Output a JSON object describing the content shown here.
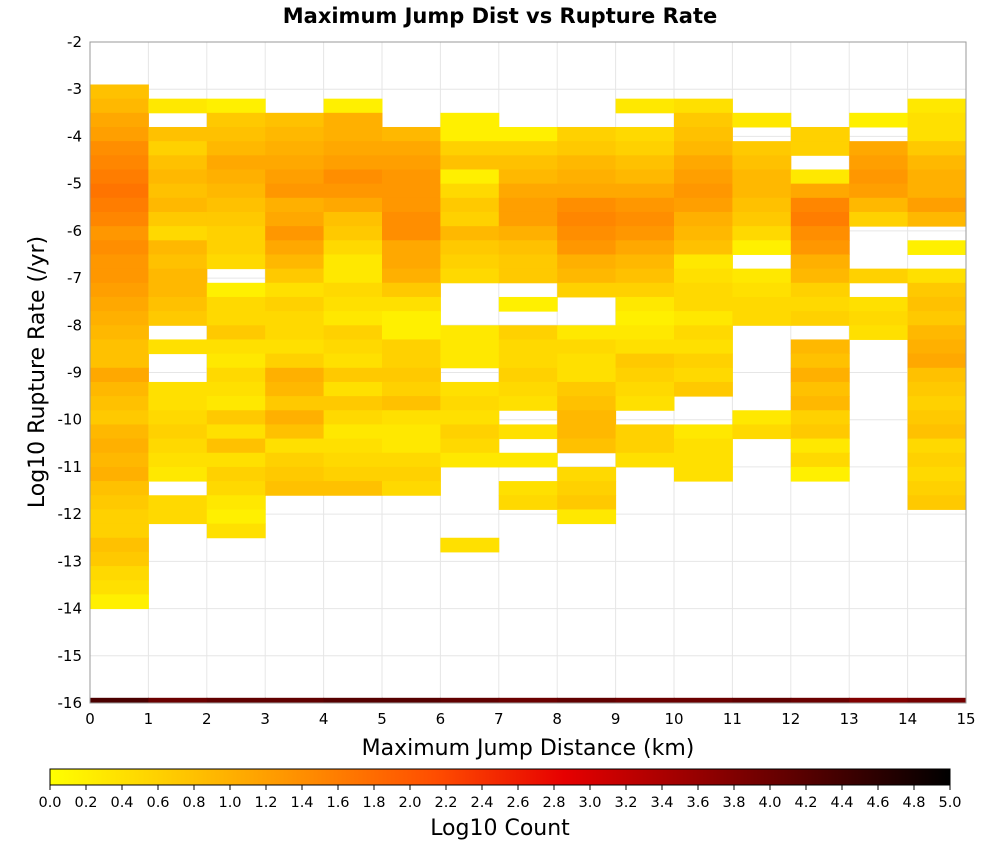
{
  "chart_data": {
    "type": "heatmap",
    "title": "Maximum Jump Dist vs Rupture Rate",
    "xlabel": "Maximum Jump Distance (km)",
    "ylabel": "Log10 Rupture Rate (/yr)",
    "colorbar_label": "Log10 Count",
    "xlim": [
      0,
      15
    ],
    "ylim": [
      -16,
      -2
    ],
    "x_ticks": [
      "0",
      "1",
      "2",
      "3",
      "4",
      "5",
      "6",
      "7",
      "8",
      "9",
      "10",
      "11",
      "12",
      "13",
      "14",
      "15"
    ],
    "y_ticks": [
      "-2",
      "-3",
      "-4",
      "-5",
      "-6",
      "-7",
      "-8",
      "-9",
      "-10",
      "-11",
      "-12",
      "-13",
      "-14",
      "-15",
      "-16"
    ],
    "color_range": [
      0,
      5
    ],
    "colorbar_ticks": [
      "0.0",
      "0.2",
      "0.4",
      "0.6",
      "0.8",
      "1.0",
      "1.2",
      "1.4",
      "1.6",
      "1.8",
      "2.0",
      "2.2",
      "2.4",
      "2.6",
      "2.8",
      "3.0",
      "3.2",
      "3.4",
      "3.6",
      "3.8",
      "4.0",
      "4.2",
      "4.4",
      "4.6",
      "4.8",
      "5.0"
    ],
    "colormap": [
      "#ffff00",
      "#ffc800",
      "#ff8c00",
      "#ff4d00",
      "#e60000",
      "#990000",
      "#4d0000",
      "#000000"
    ],
    "x_bins": [
      0.5,
      1.5,
      2.5,
      3.5,
      4.5,
      5.5,
      6.5,
      7.5,
      8.5,
      9.5,
      10.5,
      11.5,
      12.5,
      13.5,
      14.5
    ],
    "y_bin_width": 0.3,
    "bottom_row": {
      "y": -15.95,
      "values": [
        4.3,
        4.0,
        4.1,
        4.1,
        4.2,
        4.2,
        4.1,
        4.0,
        4.1,
        4.0,
        4.0,
        4.1,
        4.0,
        3.8,
        3.9
      ]
    },
    "columns": [
      {
        "x": 0.5,
        "top": -3.05,
        "values": [
          0.8,
          0.9,
          1.1,
          1.2,
          1.4,
          1.5,
          1.6,
          1.7,
          1.6,
          1.5,
          1.3,
          1.4,
          1.3,
          1.3,
          1.2,
          1.1,
          1.0,
          0.9,
          0.8,
          0.8,
          1.1,
          0.9,
          0.8,
          0.7,
          0.9,
          1.0,
          0.9,
          1.0,
          0.8,
          0.7,
          0.6,
          0.6,
          0.8,
          0.7,
          0.5,
          0.4,
          0.2
        ]
      },
      {
        "x": 1.5,
        "top": -3.35,
        "values": [
          0.3,
          null,
          0.8,
          0.6,
          0.8,
          0.9,
          0.8,
          0.9,
          0.7,
          0.5,
          0.9,
          0.8,
          0.9,
          0.9,
          0.8,
          0.7,
          null,
          0.4,
          null,
          null,
          0.4,
          0.4,
          0.5,
          0.6,
          0.5,
          0.4,
          0.3,
          null,
          0.5,
          0.5
        ]
      },
      {
        "x": 2.5,
        "top": -3.35,
        "values": [
          0.2,
          0.7,
          0.8,
          0.9,
          1.1,
          1.0,
          0.9,
          0.8,
          0.7,
          0.6,
          0.6,
          0.5,
          null,
          0.2,
          0.5,
          0.5,
          0.7,
          0.4,
          0.3,
          0.5,
          0.4,
          0.3,
          0.7,
          0.4,
          0.8,
          0.4,
          0.6,
          0.5,
          0.3,
          0.2,
          0.4
        ]
      },
      {
        "x": 3.5,
        "top": -3.65,
        "values": [
          0.8,
          0.9,
          1.0,
          1.1,
          1.2,
          1.3,
          1.0,
          1.1,
          1.3,
          1.1,
          0.9,
          0.7,
          0.4,
          0.6,
          0.5,
          0.5,
          0.4,
          0.6,
          1.0,
          0.9,
          0.7,
          1.0,
          0.8,
          0.4,
          0.6,
          0.7,
          0.8
        ]
      },
      {
        "x": 4.5,
        "top": -3.35,
        "values": [
          0.2,
          1.0,
          1.0,
          1.1,
          1.2,
          1.4,
          1.3,
          1.1,
          0.8,
          0.7,
          0.5,
          0.3,
          0.3,
          0.5,
          0.4,
          0.3,
          0.6,
          0.5,
          0.4,
          0.7,
          0.4,
          0.7,
          0.5,
          0.3,
          0.4,
          0.5,
          0.6,
          0.8
        ]
      },
      {
        "x": 5.5,
        "top": -3.95,
        "values": [
          0.9,
          1.1,
          1.2,
          1.3,
          1.3,
          1.3,
          1.4,
          1.4,
          1.1,
          1.1,
          1.0,
          0.7,
          0.4,
          0.2,
          0.2,
          0.6,
          0.6,
          0.7,
          0.6,
          0.8,
          0.4,
          0.3,
          0.3,
          0.5,
          0.6,
          0.5
        ]
      },
      {
        "x": 6.5,
        "top": -3.65,
        "values": [
          0.2,
          0.2,
          0.6,
          0.8,
          0.2,
          0.5,
          0.7,
          0.6,
          0.9,
          0.7,
          0.6,
          0.5,
          null,
          null,
          null,
          0.3,
          0.3,
          0.3,
          null,
          0.4,
          0.5,
          0.4,
          0.6,
          0.5,
          0.3,
          null,
          null,
          null,
          null,
          null,
          0.4
        ]
      },
      {
        "x": 7.5,
        "top": -3.95,
        "values": [
          0.2,
          0.6,
          0.8,
          0.9,
          1.1,
          1.2,
          1.2,
          1.0,
          0.8,
          0.7,
          0.7,
          null,
          0.2,
          null,
          0.6,
          0.5,
          0.5,
          0.6,
          0.5,
          0.4,
          null,
          0.4,
          null,
          0.3,
          null,
          0.4,
          0.5
        ]
      },
      {
        "x": 8.5,
        "top": -3.95,
        "values": [
          0.6,
          0.7,
          0.9,
          1.0,
          1.1,
          1.4,
          1.5,
          1.4,
          1.3,
          1.0,
          0.9,
          0.6,
          null,
          null,
          0.3,
          0.5,
          0.4,
          0.4,
          0.7,
          0.8,
          0.9,
          0.9,
          0.8,
          null,
          0.5,
          0.6,
          0.7,
          0.3
        ]
      },
      {
        "x": 9.5,
        "top": -3.35,
        "values": [
          0.3,
          null,
          0.5,
          0.6,
          0.8,
          0.9,
          1.1,
          1.3,
          1.4,
          1.3,
          1.1,
          0.9,
          0.8,
          0.6,
          0.3,
          0.2,
          0.3,
          0.4,
          0.7,
          0.6,
          0.5,
          0.4,
          null,
          0.6,
          0.6,
          0.4
        ]
      },
      {
        "x": 10.5,
        "top": -3.35,
        "values": [
          0.4,
          0.7,
          0.8,
          0.9,
          1.1,
          1.2,
          1.3,
          1.2,
          1.0,
          0.9,
          0.8,
          0.3,
          0.4,
          0.5,
          0.5,
          0.3,
          0.5,
          0.4,
          0.6,
          0.5,
          0.7,
          null,
          null,
          0.3,
          0.4,
          0.4,
          0.4
        ]
      },
      {
        "x": 11.5,
        "top": -3.65,
        "values": [
          0.3,
          null,
          0.7,
          0.8,
          0.9,
          0.9,
          0.8,
          0.7,
          0.5,
          0.2,
          null,
          0.3,
          0.4,
          0.5,
          0.5,
          null,
          null,
          null,
          null,
          null,
          null,
          0.3,
          0.5
        ]
      },
      {
        "x": 12.5,
        "top": -3.95,
        "values": [
          0.6,
          0.6,
          null,
          0.3,
          1.1,
          1.5,
          1.6,
          1.4,
          1.3,
          1.0,
          0.9,
          0.6,
          0.5,
          0.6,
          null,
          0.9,
          0.8,
          1.0,
          0.8,
          0.9,
          0.6,
          0.7,
          0.3,
          0.5,
          0.2
        ]
      },
      {
        "x": 13.5,
        "top": -3.65,
        "values": [
          0.2,
          null,
          1.1,
          1.2,
          1.3,
          1.2,
          0.9,
          0.6,
          null,
          null,
          null,
          0.6,
          null,
          0.4,
          0.5,
          0.4
        ]
      },
      {
        "x": 14.5,
        "top": -3.35,
        "values": [
          0.3,
          0.4,
          0.4,
          0.7,
          0.9,
          1.0,
          1.0,
          1.2,
          0.9,
          null,
          0.2,
          null,
          0.4,
          0.7,
          0.8,
          0.7,
          0.9,
          1.0,
          1.1,
          0.8,
          0.7,
          0.6,
          0.7,
          0.8,
          0.5,
          0.6,
          0.5,
          0.6,
          0.7
        ]
      }
    ]
  }
}
